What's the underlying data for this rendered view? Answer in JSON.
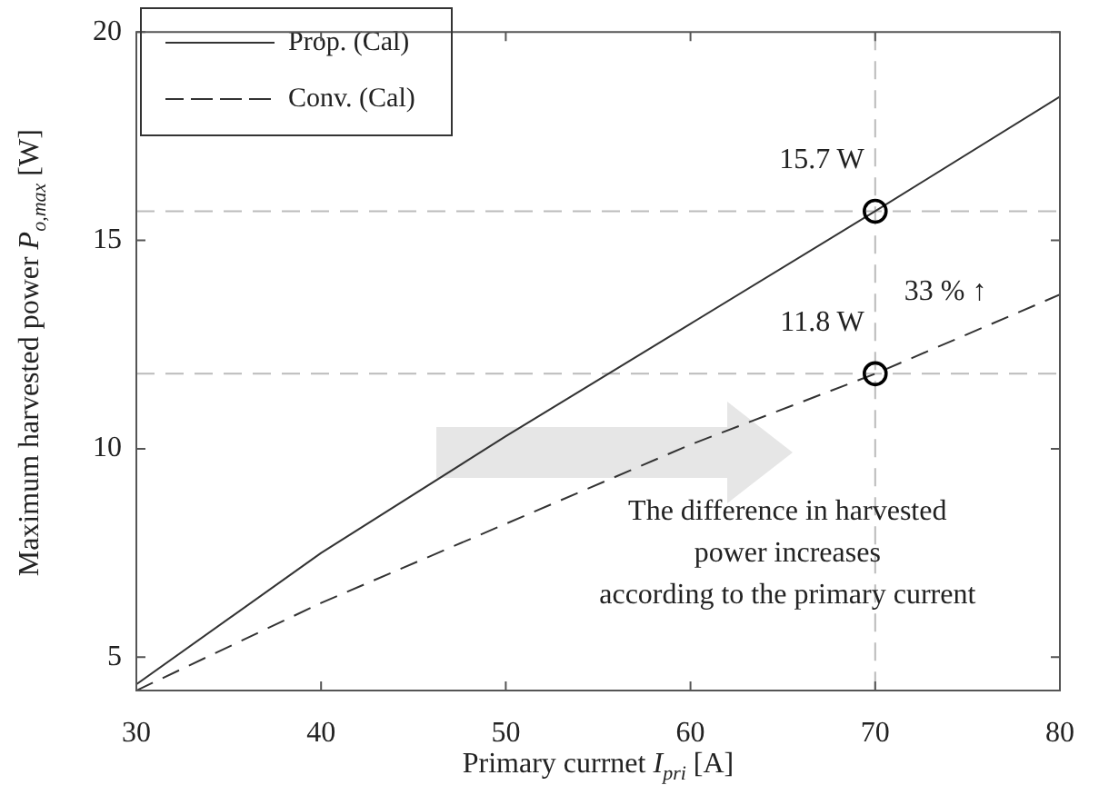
{
  "chart_data": {
    "type": "line",
    "xlabel": "Primary currnet I$_{pri}$ [A]",
    "ylabel": "Maximum harvested power P$_{o,max}$ [W]",
    "x": [
      30,
      40,
      50,
      60,
      70,
      80
    ],
    "series": [
      {
        "name": "Prop. (Cal)",
        "color": "#333333",
        "values": [
          4.35,
          7.5,
          10.3,
          13.0,
          15.7,
          18.45
        ],
        "line_style": "solid",
        "marker": "none"
      },
      {
        "name": "Conv. (Cal)",
        "color": "#333333",
        "values": [
          4.2,
          6.3,
          8.2,
          10.1,
          11.8,
          13.7
        ],
        "line_style": "dashed",
        "marker": "none"
      },
      {
        "type": "scatter",
        "color": "#000000",
        "x": [
          70,
          70
        ],
        "values": [
          15.7,
          11.8
        ],
        "marker": "circle"
      }
    ],
    "xlim": [
      30,
      80
    ],
    "xticks": [
      30,
      40,
      50,
      60,
      70,
      80
    ],
    "ylim": [
      4.2,
      20
    ],
    "yticks": [
      5,
      10,
      15,
      20
    ],
    "grid": false,
    "legend": "top left",
    "ref_lines": [
      {
        "axis": "x",
        "value": 70,
        "color": "#bbbbbb",
        "line_style": "dashed"
      },
      {
        "axis": "y",
        "value": 15.7,
        "color": "#bbbbbb",
        "line_style": "dashed"
      },
      {
        "axis": "y",
        "value": 11.8,
        "color": "#bbbbbb",
        "line_style": "dashed"
      }
    ],
    "annotations": [
      "15.7 W",
      "11.8 W",
      "33 % ↑",
      "The difference in harvested\npower increases\naccording to the primary current"
    ]
  }
}
